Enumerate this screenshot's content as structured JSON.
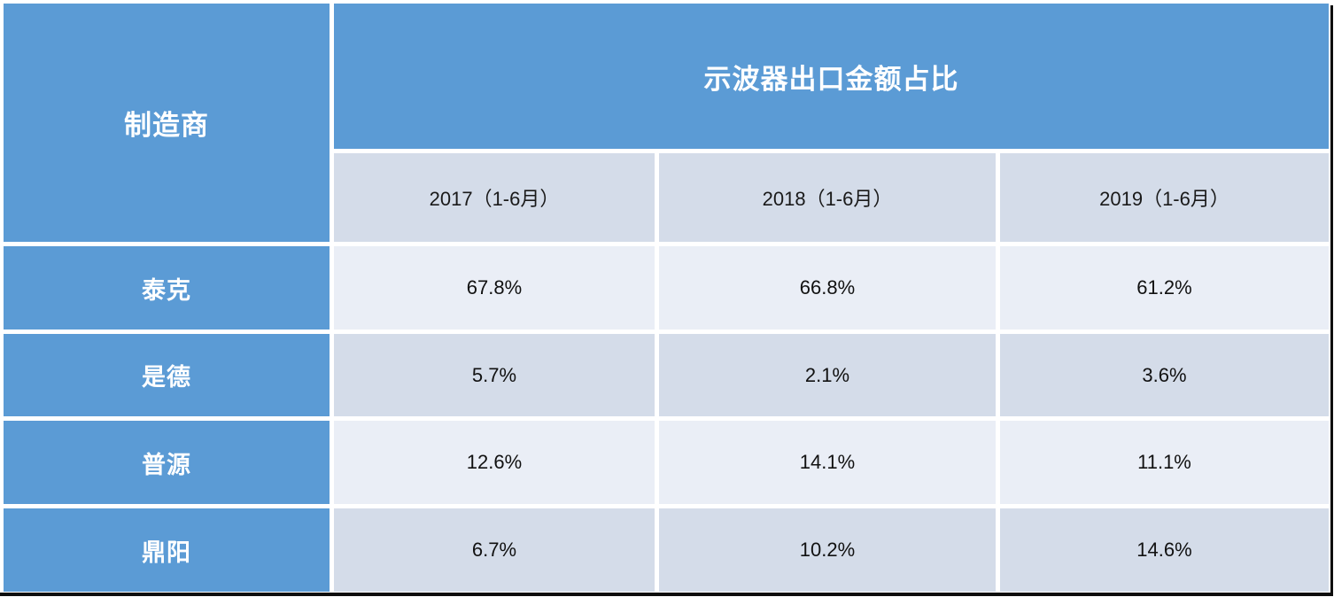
{
  "table": {
    "row_header_title": "制造商",
    "main_header": "示波器出口金额占比",
    "column_headers": [
      "2017（1-6月）",
      "2018（1-6月）",
      "2019（1-6月）"
    ],
    "rows": [
      {
        "manufacturer": "泰克",
        "values": [
          "67.8%",
          "66.8%",
          "61.2%"
        ]
      },
      {
        "manufacturer": "是德",
        "values": [
          "5.7%",
          "2.1%",
          "3.6%"
        ]
      },
      {
        "manufacturer": "普源",
        "values": [
          "12.6%",
          "14.1%",
          "11.1%"
        ]
      },
      {
        "manufacturer": "鼎阳",
        "values": [
          "6.7%",
          "10.2%",
          "14.6%"
        ]
      }
    ]
  },
  "colors": {
    "header_blue": "#5B9BD5",
    "row_light": "#EAEEF6",
    "row_shaded": "#D4DCE9",
    "header_text": "#FFFFFF",
    "cell_text": "#111111",
    "edge_dark": "#0D0D0D"
  },
  "chart_data": {
    "type": "table",
    "title": "示波器出口金额占比",
    "row_label": "制造商",
    "categories": [
      "2017（1-6月）",
      "2018（1-6月）",
      "2019（1-6月）"
    ],
    "series": [
      {
        "name": "泰克",
        "values": [
          67.8,
          66.8,
          61.2
        ]
      },
      {
        "name": "是德",
        "values": [
          5.7,
          2.1,
          3.6
        ]
      },
      {
        "name": "普源",
        "values": [
          12.6,
          14.1,
          11.1
        ]
      },
      {
        "name": "鼎阳",
        "values": [
          6.7,
          10.2,
          14.6
        ]
      }
    ],
    "unit": "%"
  }
}
